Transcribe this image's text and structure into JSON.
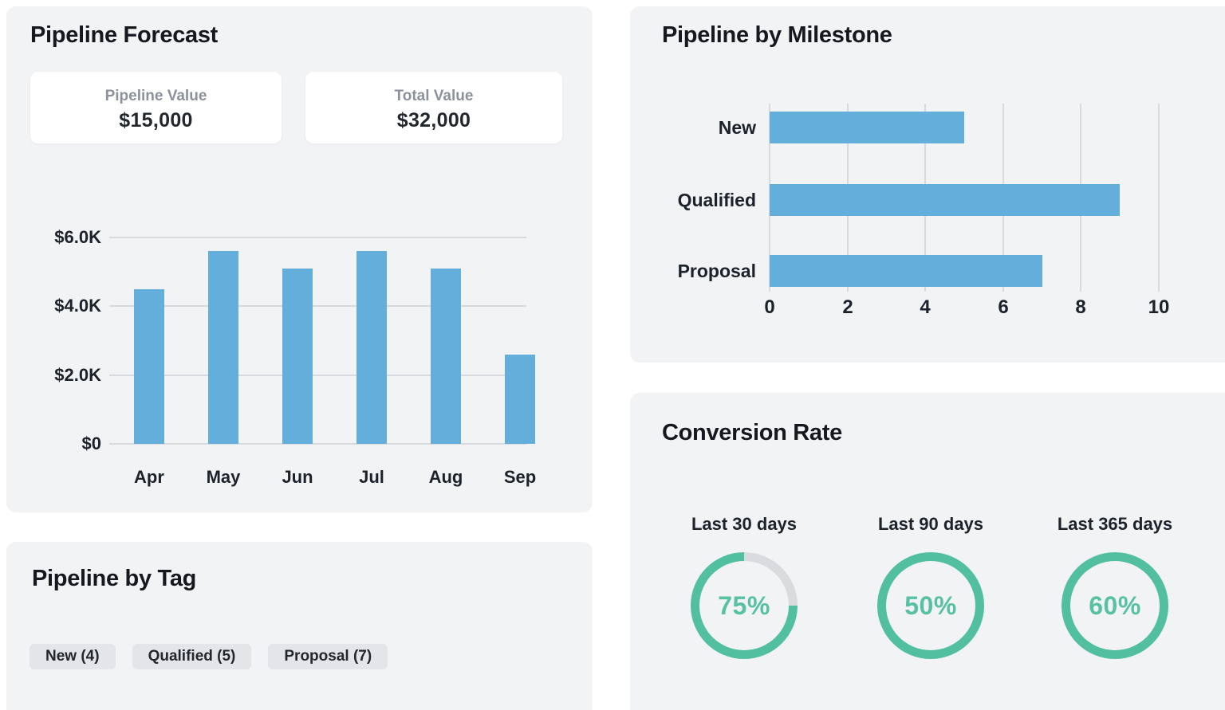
{
  "panels": {
    "forecast": {
      "title": "Pipeline Forecast",
      "stats": [
        {
          "label": "Pipeline Value",
          "value": "$15,000"
        },
        {
          "label": "Total Value",
          "value": "$32,000"
        }
      ]
    },
    "milestone": {
      "title": "Pipeline by Milestone"
    },
    "tag": {
      "title": "Pipeline by Tag",
      "chips": [
        "New (4)",
        "Qualified (5)",
        "Proposal (7)"
      ]
    },
    "conversion": {
      "title": "Conversion Rate",
      "donuts": [
        {
          "label": "Last 30 days",
          "value": 75,
          "display": "75%",
          "remainder_visible": true
        },
        {
          "label": "Last 90 days",
          "value": 50,
          "display": "50%",
          "remainder_visible": false
        },
        {
          "label": "Last 365 days",
          "value": 60,
          "display": "60%",
          "remainder_visible": false
        }
      ]
    }
  },
  "chart_data": [
    {
      "type": "bar",
      "orientation": "vertical",
      "title": "Pipeline Forecast",
      "categories": [
        "Apr",
        "May",
        "Jun",
        "Jul",
        "Aug",
        "Sep"
      ],
      "values": [
        4500,
        5600,
        5100,
        5600,
        5100,
        2600
      ],
      "ytick_labels": [
        "$0",
        "$2.0K",
        "$4.0K",
        "$6.0K"
      ],
      "ytick_values": [
        0,
        2000,
        4000,
        6000
      ],
      "ylim": [
        0,
        6000
      ],
      "grid": "horizontal",
      "legend": "none"
    },
    {
      "type": "bar",
      "orientation": "horizontal",
      "title": "Pipeline by Milestone",
      "categories": [
        "New",
        "Qualified",
        "Proposal"
      ],
      "values": [
        5,
        9,
        7
      ],
      "xticks": [
        0,
        2,
        4,
        6,
        8,
        10
      ],
      "xlim": [
        0,
        10
      ],
      "grid": "vertical",
      "legend": "none"
    },
    {
      "type": "pie",
      "subtype": "donut-set",
      "title": "Conversion Rate",
      "items": [
        {
          "label": "Last 30 days",
          "value": 75
        },
        {
          "label": "Last 90 days",
          "value": 50
        },
        {
          "label": "Last 365 days",
          "value": 60
        }
      ]
    }
  ],
  "colors": {
    "bar_blue": "#63aeda",
    "ring_teal": "#52bfa0",
    "ring_remainder": "#d9dbde",
    "panel_bg": "#f2f3f5",
    "grid_line": "#d7dade",
    "chip_bg": "#e3e5e8",
    "text_dark": "#1c222b",
    "text_gray": "#8b929d",
    "pct_text": "#58c0a3"
  }
}
